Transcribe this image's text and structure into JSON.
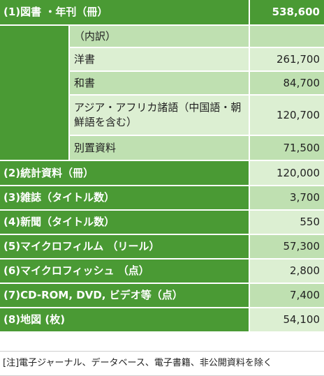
{
  "rows": {
    "books": {
      "label": "(1)図書 ・年刊（冊）",
      "value": "538,600"
    },
    "breakdown_header": {
      "label": "（内訳）",
      "value": ""
    },
    "western": {
      "label": "洋書",
      "value": "261,700"
    },
    "japanese": {
      "label": "和書",
      "value": "84,700"
    },
    "asian": {
      "label": "アジア・アフリカ諸語（中国語・朝鮮語を含む）",
      "value": "120,700"
    },
    "separate": {
      "label": "別置資料",
      "value": "71,500"
    },
    "statistics": {
      "label": "(2)統計資料（冊）",
      "value": "120,000"
    },
    "journals": {
      "label": "(3)雑誌（タイトル数）",
      "value": "3,700"
    },
    "newspapers": {
      "label": "(4)新聞（タイトル数）",
      "value": "550"
    },
    "microfilm": {
      "label": "(5)マイクロフィルム （リール）",
      "value": "57,300"
    },
    "microfiche": {
      "label": "(6)マイクロフィッシュ （点）",
      "value": "2,800"
    },
    "media": {
      "label": "(7)CD-ROM, DVD, ビデオ等（点）",
      "value": "7,400"
    },
    "maps": {
      "label": "(8)地図 (枚)",
      "value": "54,100"
    }
  },
  "note": "[注]電子ジャーナル、データベース、電子書籍、非公開資料を除く",
  "colors": {
    "dark_green": "#4a9a34",
    "light_green": "#dcefd2",
    "mid_green": "#bfe0b1"
  }
}
